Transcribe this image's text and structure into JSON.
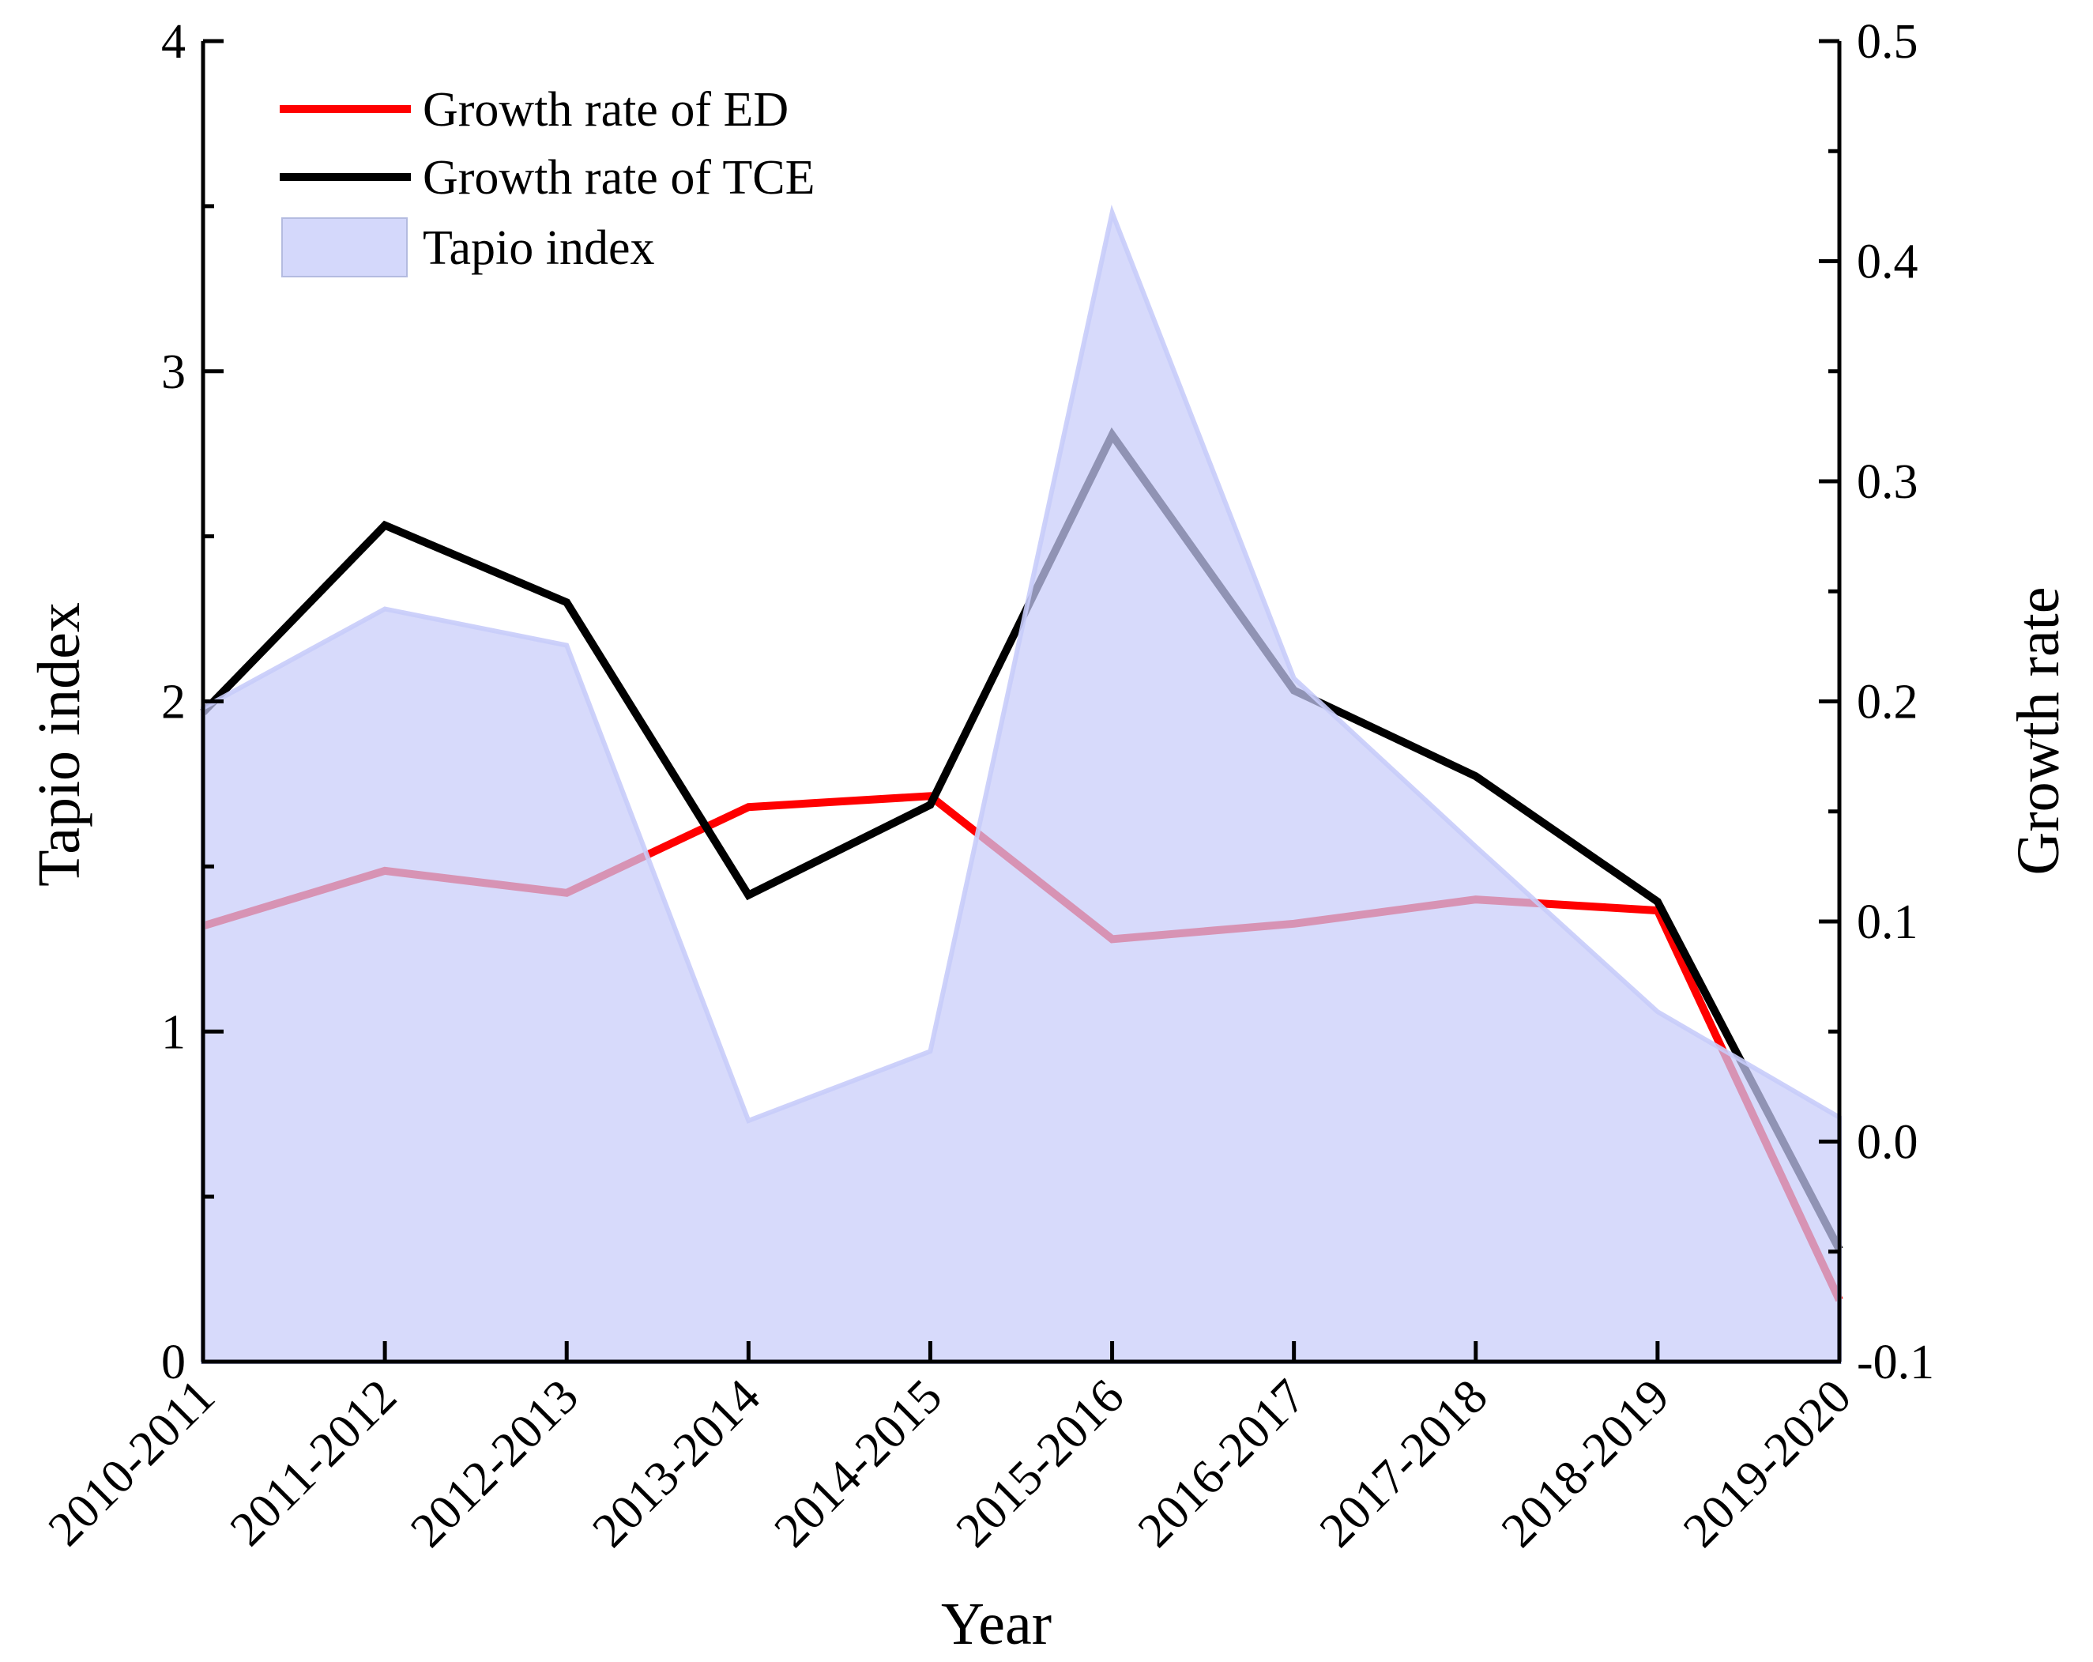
{
  "chart_data": {
    "type": "line",
    "categories": [
      "2010-2011",
      "2011-2012",
      "2012-2013",
      "2013-2014",
      "2014-2015",
      "2015-2016",
      "2016-2017",
      "2017-2018",
      "2018-2019",
      "2019-2020"
    ],
    "xlabel": "Year",
    "ylabel_left": "Tapio index",
    "ylabel_right": "Growth rate",
    "ylim_left": [
      0,
      4
    ],
    "ylim_right": [
      -0.1,
      0.5
    ],
    "left_ticks": [
      "0",
      "1",
      "2",
      "3",
      "4"
    ],
    "right_ticks": [
      "-0.1",
      "0.0",
      "0.1",
      "0.2",
      "0.3",
      "0.4",
      "0.5"
    ],
    "grid": false,
    "legend_position": "top-left",
    "series": [
      {
        "name": "Growth rate of ED",
        "type": "line",
        "axis": "right",
        "color": "#ff0000",
        "values": [
          0.098,
          0.123,
          0.113,
          0.152,
          0.157,
          0.092,
          0.099,
          0.11,
          0.105,
          -0.072
        ]
      },
      {
        "name": "Growth rate of TCE",
        "type": "line",
        "axis": "right",
        "color": "#000000",
        "values": [
          0.195,
          0.28,
          0.245,
          0.112,
          0.153,
          0.321,
          0.205,
          0.166,
          0.109,
          -0.049
        ]
      },
      {
        "name": "Tapio index",
        "type": "area",
        "axis": "left",
        "color": "#c8ccfa",
        "values": [
          1.98,
          2.28,
          2.17,
          0.73,
          0.94,
          3.48,
          2.07,
          1.56,
          1.06,
          0.74
        ]
      }
    ]
  }
}
